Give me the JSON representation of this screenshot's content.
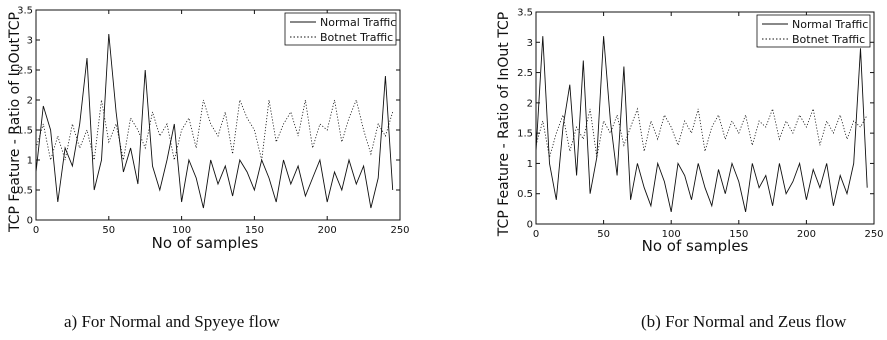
{
  "figure": {
    "caption_left": "a) For Normal and Spyeye flow",
    "caption_right": "(b) For Normal and Zeus flow"
  },
  "chart_data": [
    {
      "type": "line",
      "xlabel": "No of samples",
      "ylabel": "TCP Feature - Ratio of InOutTCP",
      "xlim": [
        0,
        250
      ],
      "ylim": [
        0,
        3.5
      ],
      "x_ticks": [
        "0",
        "50",
        "100",
        "150",
        "200",
        "250"
      ],
      "y_ticks": [
        "0",
        "0.5",
        "1",
        "1.5",
        "2",
        "2.5",
        "3",
        "3.5"
      ],
      "x_tick_values": [
        0,
        50,
        100,
        150,
        200,
        250
      ],
      "y_tick_values": [
        0,
        0.5,
        1,
        1.5,
        2,
        2.5,
        3,
        3.5
      ],
      "grid": false,
      "legend_position": "top-right",
      "x": [
        0,
        5,
        10,
        15,
        20,
        25,
        30,
        35,
        40,
        45,
        50,
        55,
        60,
        65,
        70,
        75,
        80,
        85,
        90,
        95,
        100,
        105,
        110,
        115,
        120,
        125,
        130,
        135,
        140,
        145,
        150,
        155,
        160,
        165,
        170,
        175,
        180,
        185,
        190,
        195,
        200,
        205,
        210,
        215,
        220,
        225,
        230,
        235,
        240,
        245
      ],
      "series": [
        {
          "name": "Normal Traffic",
          "style": "solid",
          "values": [
            0.8,
            1.9,
            1.5,
            0.3,
            1.2,
            0.9,
            1.6,
            2.7,
            0.5,
            1.0,
            3.1,
            1.8,
            0.8,
            1.2,
            0.6,
            2.5,
            0.9,
            0.5,
            1.0,
            1.6,
            0.3,
            1.0,
            0.7,
            0.2,
            1.0,
            0.6,
            0.9,
            0.4,
            1.0,
            0.8,
            0.5,
            1.0,
            0.7,
            0.3,
            1.0,
            0.6,
            0.9,
            0.4,
            0.7,
            1.0,
            0.3,
            0.8,
            0.5,
            1.0,
            0.6,
            0.9,
            0.2,
            0.7,
            2.4,
            0.5
          ]
        },
        {
          "name": "Botnet Traffic",
          "style": "dotted",
          "values": [
            1.2,
            1.6,
            1.0,
            1.4,
            1.0,
            1.6,
            1.2,
            1.5,
            1.0,
            2.0,
            1.3,
            1.6,
            1.0,
            1.7,
            1.5,
            1.2,
            1.8,
            1.4,
            1.6,
            1.0,
            1.5,
            1.7,
            1.2,
            2.0,
            1.6,
            1.4,
            1.8,
            1.1,
            2.0,
            1.7,
            1.5,
            1.0,
            2.0,
            1.3,
            1.6,
            1.8,
            1.4,
            2.0,
            1.2,
            1.6,
            1.5,
            2.0,
            1.3,
            1.7,
            2.0,
            1.5,
            1.1,
            1.6,
            1.4,
            1.8
          ]
        }
      ]
    },
    {
      "type": "line",
      "xlabel": "No of samples",
      "ylabel": "TCP Feature - Ratio of InOut TCP",
      "xlim": [
        0,
        250
      ],
      "ylim": [
        0,
        3.5
      ],
      "x_ticks": [
        "0",
        "50",
        "100",
        "150",
        "200",
        "250"
      ],
      "y_ticks": [
        "0",
        "0.5",
        "1",
        "1.5",
        "2",
        "2.5",
        "3",
        "3.5"
      ],
      "x_tick_values": [
        0,
        50,
        100,
        150,
        200,
        250
      ],
      "y_tick_values": [
        0,
        0.5,
        1,
        1.5,
        2,
        2.5,
        3,
        3.5
      ],
      "grid": false,
      "legend_position": "top-right",
      "x": [
        0,
        5,
        10,
        15,
        20,
        25,
        30,
        35,
        40,
        45,
        50,
        55,
        60,
        65,
        70,
        75,
        80,
        85,
        90,
        95,
        100,
        105,
        110,
        115,
        120,
        125,
        130,
        135,
        140,
        145,
        150,
        155,
        160,
        165,
        170,
        175,
        180,
        185,
        190,
        195,
        200,
        205,
        210,
        215,
        220,
        225,
        230,
        235,
        240,
        245
      ],
      "series": [
        {
          "name": "Normal Traffic",
          "style": "solid",
          "values": [
            1.2,
            3.1,
            1.0,
            0.4,
            1.6,
            2.3,
            0.8,
            2.7,
            0.5,
            1.1,
            3.1,
            1.7,
            0.8,
            2.6,
            0.4,
            1.0,
            0.6,
            0.3,
            1.0,
            0.7,
            0.2,
            1.0,
            0.8,
            0.4,
            1.0,
            0.6,
            0.3,
            0.9,
            0.5,
            1.0,
            0.7,
            0.2,
            1.0,
            0.6,
            0.8,
            0.3,
            1.0,
            0.5,
            0.7,
            1.0,
            0.4,
            0.9,
            0.6,
            1.0,
            0.3,
            0.8,
            0.5,
            1.0,
            2.9,
            0.6
          ]
        },
        {
          "name": "Botnet Traffic",
          "style": "dotted",
          "values": [
            1.3,
            1.7,
            1.1,
            1.5,
            1.8,
            1.2,
            1.6,
            1.4,
            1.9,
            1.1,
            1.7,
            1.5,
            1.8,
            1.3,
            1.6,
            1.9,
            1.2,
            1.7,
            1.4,
            1.8,
            1.6,
            1.3,
            1.7,
            1.5,
            1.9,
            1.2,
            1.6,
            1.8,
            1.4,
            1.7,
            1.5,
            1.8,
            1.3,
            1.7,
            1.6,
            1.9,
            1.4,
            1.7,
            1.5,
            1.8,
            1.6,
            1.9,
            1.3,
            1.7,
            1.5,
            1.8,
            1.4,
            1.7,
            1.6,
            1.8
          ]
        }
      ]
    }
  ]
}
